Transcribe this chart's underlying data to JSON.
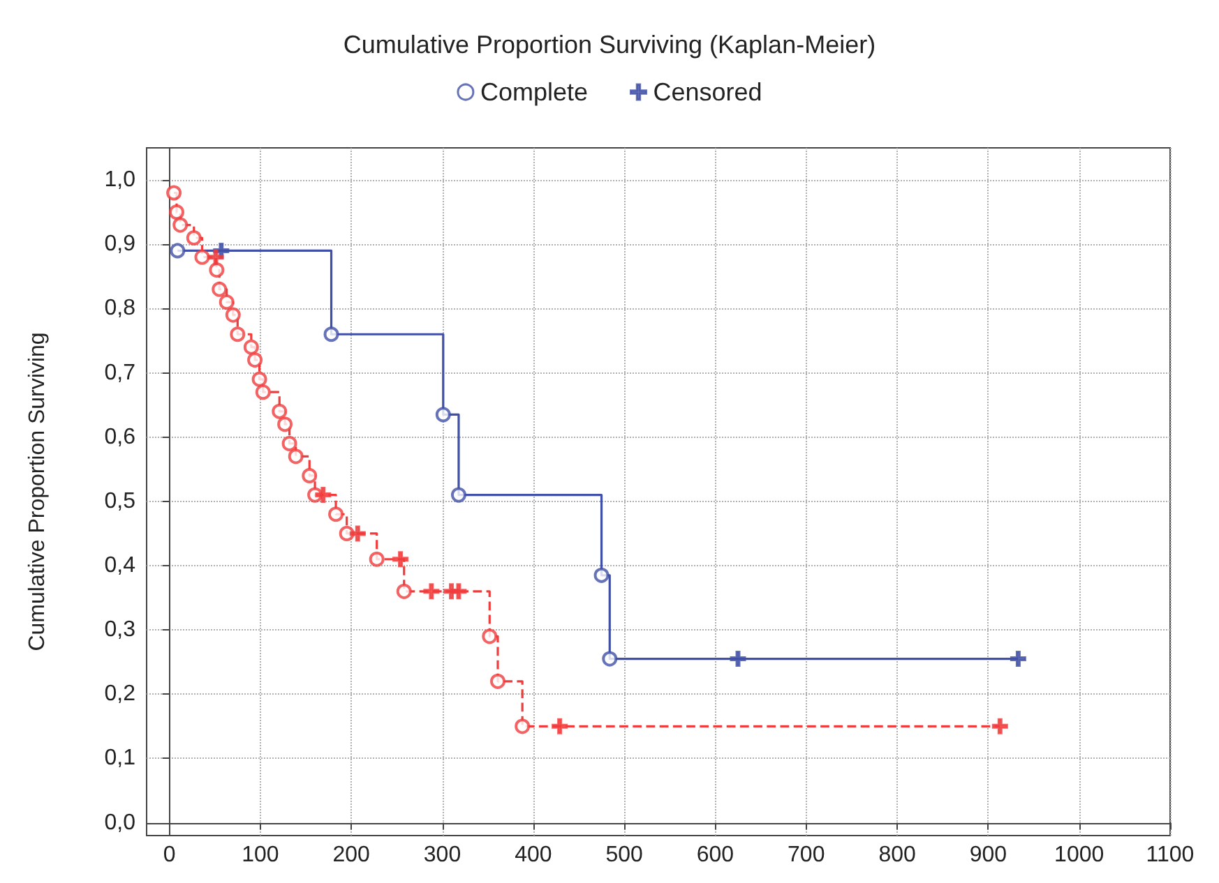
{
  "chart_data": {
    "type": "step",
    "title": "Cumulative Proportion Surviving (Kaplan-Meier)",
    "ylabel": "Cumulative Proportion Surviving",
    "xlim": [
      -25,
      1100
    ],
    "xticks": [
      0,
      100,
      200,
      300,
      400,
      500,
      600,
      700,
      800,
      900,
      1000,
      1100
    ],
    "ylim": [
      -0.02,
      1.05
    ],
    "yticks": [
      {
        "value": 0,
        "label": "0,0"
      },
      {
        "value": 0.1,
        "label": "0,1"
      },
      {
        "value": 0.2,
        "label": "0,2"
      },
      {
        "value": 0.3,
        "label": "0,3"
      },
      {
        "value": 0.4,
        "label": "0,4"
      },
      {
        "value": 0.5,
        "label": "0,5"
      },
      {
        "value": 0.6,
        "label": "0,6"
      },
      {
        "value": 0.7,
        "label": "0,7"
      },
      {
        "value": 0.8,
        "label": "0,8"
      },
      {
        "value": 0.9,
        "label": "0,9"
      },
      {
        "value": 1,
        "label": "1,0"
      }
    ],
    "grid": true,
    "legend": "top",
    "series": [
      {
        "color": "#4050a8",
        "line_style": "solid",
        "marker": "none",
        "x": [
          9,
          57,
          178,
          301,
          318,
          475,
          484,
          625,
          933
        ],
        "values": [
          0.89,
          0.89,
          0.76,
          0.635,
          0.51,
          0.385,
          0.255,
          0.255,
          0.255
        ]
      },
      {
        "color": "#f03c3c",
        "line_style": "dashed",
        "marker": "none",
        "x": [
          5,
          8,
          12,
          27,
          36,
          51,
          52,
          55,
          63,
          70,
          75,
          90,
          94,
          99,
          103,
          121,
          127,
          132,
          139,
          154,
          160,
          169,
          183,
          195,
          207,
          228,
          254,
          258,
          288,
          310,
          318,
          352,
          361,
          388,
          429,
          913
        ],
        "values": [
          0.98,
          0.95,
          0.93,
          0.91,
          0.88,
          0.88,
          0.86,
          0.83,
          0.81,
          0.79,
          0.76,
          0.74,
          0.72,
          0.69,
          0.67,
          0.64,
          0.62,
          0.59,
          0.57,
          0.54,
          0.51,
          0.51,
          0.48,
          0.45,
          0.45,
          0.41,
          0.41,
          0.36,
          0.36,
          0.36,
          0.36,
          0.29,
          0.22,
          0.15,
          0.15,
          0.15
        ]
      },
      {
        "type": "scatter",
        "name": "Complete",
        "marker": "circle",
        "color": "#4050a8",
        "x": [
          9,
          178,
          301,
          318,
          475,
          484,
          5,
          8,
          12,
          27,
          36,
          52,
          55,
          63,
          70,
          75,
          90,
          94,
          99,
          103,
          121,
          127,
          132,
          139,
          154,
          160,
          183,
          195,
          228,
          258,
          352,
          361,
          388
        ],
        "values": [
          0.89,
          0.76,
          0.635,
          0.51,
          0.385,
          0.255,
          0.98,
          0.95,
          0.93,
          0.91,
          0.88,
          0.86,
          0.83,
          0.81,
          0.79,
          0.76,
          0.74,
          0.72,
          0.69,
          0.67,
          0.64,
          0.62,
          0.59,
          0.57,
          0.54,
          0.51,
          0.48,
          0.45,
          0.41,
          0.36,
          0.29,
          0.22,
          0.15
        ],
        "colors": [
          "#4050a8",
          "#4050a8",
          "#4050a8",
          "#4050a8",
          "#4050a8",
          "#4050a8",
          "#f03c3c",
          "#f03c3c",
          "#f03c3c",
          "#f03c3c",
          "#f03c3c",
          "#f03c3c",
          "#f03c3c",
          "#f03c3c",
          "#f03c3c",
          "#f03c3c",
          "#f03c3c",
          "#f03c3c",
          "#f03c3c",
          "#f03c3c",
          "#f03c3c",
          "#f03c3c",
          "#f03c3c",
          "#f03c3c",
          "#f03c3c",
          "#f03c3c",
          "#f03c3c",
          "#f03c3c",
          "#f03c3c",
          "#f03c3c",
          "#f03c3c",
          "#f03c3c",
          "#f03c3c"
        ]
      },
      {
        "type": "scatter",
        "name": "Censored",
        "marker": "cross",
        "color": "#4050a8",
        "x": [
          57,
          625,
          933,
          51,
          169,
          207,
          254,
          288,
          310,
          318,
          429,
          913
        ],
        "values": [
          0.89,
          0.255,
          0.255,
          0.88,
          0.51,
          0.45,
          0.41,
          0.36,
          0.36,
          0.36,
          0.15,
          0.15
        ],
        "colors": [
          "#4050a8",
          "#4050a8",
          "#4050a8",
          "#f03c3c",
          "#f03c3c",
          "#f03c3c",
          "#f03c3c",
          "#f03c3c",
          "#f03c3c",
          "#f03c3c",
          "#f03c3c",
          "#f03c3c"
        ]
      }
    ]
  }
}
